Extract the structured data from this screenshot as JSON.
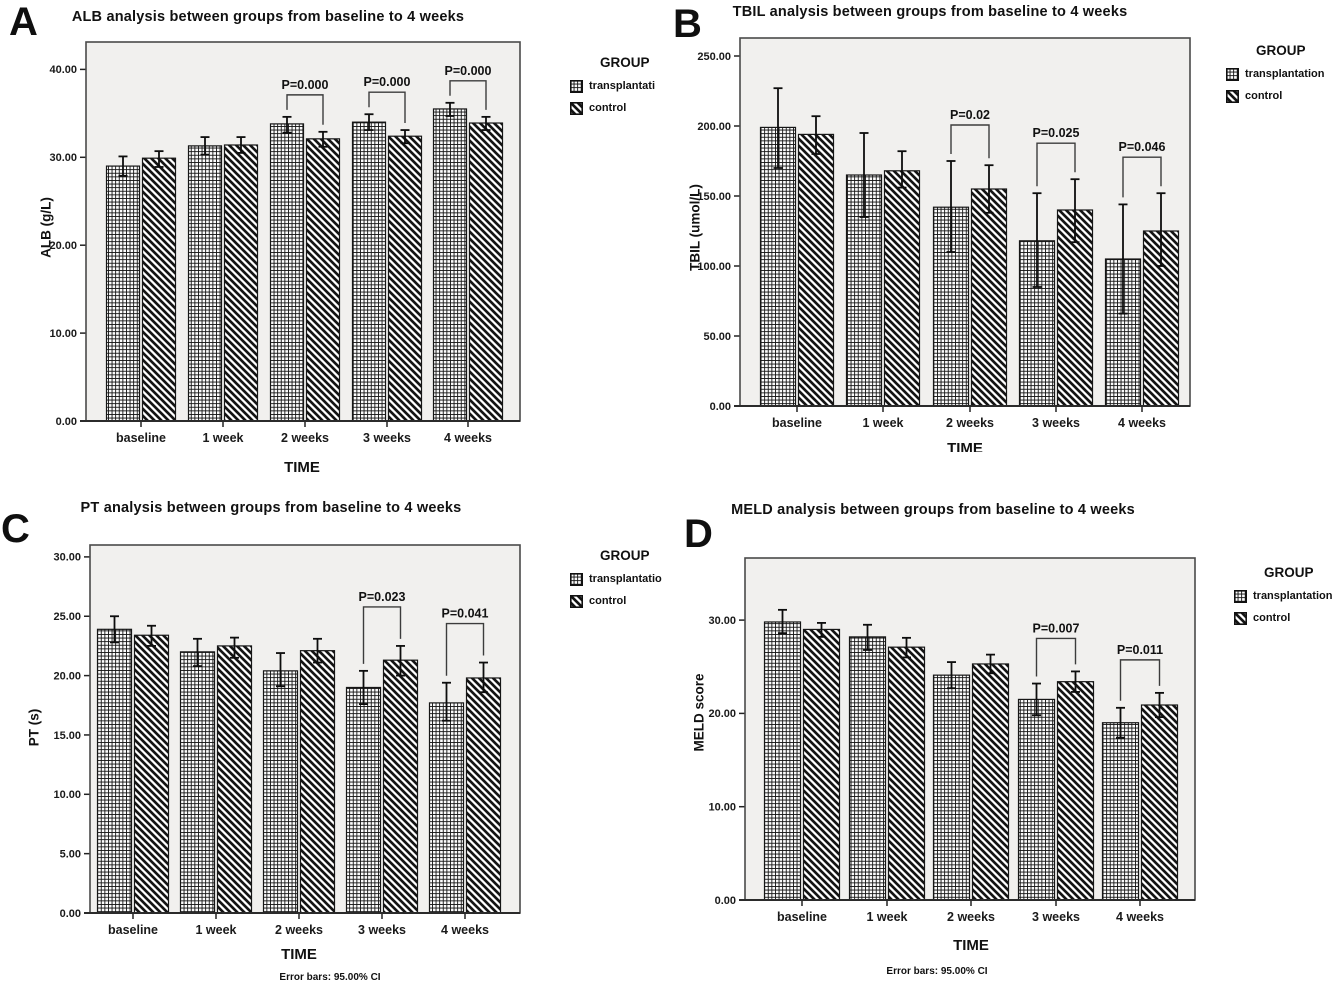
{
  "figure": {
    "style": "SPSS grouped bar charts, grayscale",
    "colors": {
      "plot_bg": "#f1f0ee",
      "pattern_ink": "#141414",
      "text": "#1a1a1a",
      "frame": "#4a4a4a"
    },
    "group_names": [
      "transplantation",
      "control"
    ]
  },
  "chart_data": [
    {
      "type": "bar",
      "panel_letter": "A",
      "title": "ALB analysis between groups from baseline to 4 weeks",
      "ylabel": "ALB (g/L)",
      "xlabel": "TIME",
      "legend": {
        "title": "GROUP",
        "items": [
          "transplantati",
          "control"
        ]
      },
      "legend_position": "right",
      "grid": false,
      "categories": [
        "baseline",
        "1 week",
        "2 weeks",
        "3 weeks",
        "4 weeks"
      ],
      "ylim": [
        0,
        43
      ],
      "yticks": [
        0,
        10,
        20,
        30,
        40
      ],
      "series": [
        {
          "name": "transplantation",
          "pattern": "grid",
          "values": [
            29.0,
            31.3,
            33.8,
            34.0,
            35.5
          ],
          "ci_low": [
            27.9,
            30.3,
            32.8,
            33.1,
            34.7
          ],
          "ci_high": [
            30.1,
            32.3,
            34.6,
            34.9,
            36.2
          ]
        },
        {
          "name": "control",
          "pattern": "diagonal",
          "values": [
            29.9,
            31.4,
            32.1,
            32.4,
            33.9
          ],
          "ci_low": [
            28.9,
            30.5,
            31.2,
            31.6,
            33.1
          ],
          "ci_high": [
            30.7,
            32.3,
            32.9,
            33.1,
            34.6
          ]
        }
      ],
      "p_values": [
        {
          "category": "2 weeks",
          "label": "P=0.000"
        },
        {
          "category": "3 weeks",
          "label": "P=0.000"
        },
        {
          "category": "4 weeks",
          "label": "P=0.000"
        }
      ]
    },
    {
      "type": "bar",
      "panel_letter": "B",
      "title": "TBIL analysis between groups from baseline to 4 weeks",
      "ylabel": "TBIL (umol/L)",
      "xlabel": "TIME",
      "legend": {
        "title": "GROUP",
        "items": [
          "transplantation",
          "control"
        ]
      },
      "legend_position": "right",
      "grid": false,
      "categories": [
        "baseline",
        "1 week",
        "2 weeks",
        "3 weeks",
        "4 weeks"
      ],
      "ylim": [
        0,
        263
      ],
      "yticks": [
        0,
        50,
        100,
        150,
        200,
        250
      ],
      "series": [
        {
          "name": "transplantation",
          "pattern": "grid",
          "values": [
            199,
            165,
            142,
            118,
            105
          ],
          "ci_low": [
            170,
            135,
            110,
            85,
            66
          ],
          "ci_high": [
            227,
            195,
            175,
            152,
            144
          ]
        },
        {
          "name": "control",
          "pattern": "diagonal",
          "values": [
            194,
            168,
            155,
            140,
            125
          ],
          "ci_low": [
            180,
            156,
            138,
            117,
            100
          ],
          "ci_high": [
            207,
            182,
            172,
            162,
            152
          ]
        }
      ],
      "p_values": [
        {
          "category": "2 weeks",
          "label": "P=0.02"
        },
        {
          "category": "3 weeks",
          "label": "P=0.025"
        },
        {
          "category": "4 weeks",
          "label": "P=0.046"
        }
      ]
    },
    {
      "type": "bar",
      "panel_letter": "C",
      "title": "PT analysis between groups from baseline to 4 weeks",
      "ylabel": "PT (s)",
      "xlabel": "TIME",
      "footnote": "Error bars: 95.00% CI",
      "legend": {
        "title": "GROUP",
        "items": [
          "transplantatio",
          "control"
        ]
      },
      "legend_position": "right",
      "grid": false,
      "categories": [
        "baseline",
        "1 week",
        "2 weeks",
        "3 weeks",
        "4 weeks"
      ],
      "ylim": [
        0,
        31
      ],
      "yticks": [
        0,
        5,
        10,
        15,
        20,
        25,
        30
      ],
      "series": [
        {
          "name": "transplantation",
          "pattern": "grid",
          "values": [
            23.9,
            22.0,
            20.4,
            19.0,
            17.7
          ],
          "ci_low": [
            22.8,
            20.8,
            19.1,
            17.6,
            16.2
          ],
          "ci_high": [
            25.0,
            23.1,
            21.9,
            20.4,
            19.4
          ]
        },
        {
          "name": "control",
          "pattern": "diagonal",
          "values": [
            23.4,
            22.5,
            22.1,
            21.3,
            19.8
          ],
          "ci_low": [
            22.5,
            21.5,
            21.1,
            20.0,
            18.6
          ],
          "ci_high": [
            24.2,
            23.2,
            23.1,
            22.5,
            21.1
          ]
        }
      ],
      "p_values": [
        {
          "category": "3 weeks",
          "label": "P=0.023"
        },
        {
          "category": "4 weeks",
          "label": "P=0.041"
        }
      ]
    },
    {
      "type": "bar",
      "panel_letter": "D",
      "title": "MELD analysis between groups from baseline to 4 weeks",
      "ylabel": "MELD score",
      "xlabel": "TIME",
      "footnote": "Error bars: 95.00% CI",
      "legend": {
        "title": "GROUP",
        "items": [
          "transplantation",
          "control"
        ]
      },
      "legend_position": "right",
      "grid": false,
      "categories": [
        "baseline",
        "1 week",
        "2 weeks",
        "3 weeks",
        "4 weeks"
      ],
      "ylim": [
        0,
        36.7
      ],
      "yticks": [
        0,
        10,
        20,
        30
      ],
      "series": [
        {
          "name": "transplantation",
          "pattern": "grid",
          "values": [
            29.8,
            28.2,
            24.1,
            21.5,
            19.0
          ],
          "ci_low": [
            28.6,
            26.8,
            22.7,
            19.8,
            17.4
          ],
          "ci_high": [
            31.1,
            29.5,
            25.5,
            23.2,
            20.6
          ]
        },
        {
          "name": "control",
          "pattern": "diagonal",
          "values": [
            29.0,
            27.1,
            25.3,
            23.4,
            20.9
          ],
          "ci_low": [
            28.2,
            26.0,
            24.3,
            22.3,
            19.6
          ],
          "ci_high": [
            29.7,
            28.1,
            26.3,
            24.5,
            22.2
          ]
        }
      ],
      "p_values": [
        {
          "category": "3 weeks",
          "label": "P=0.007"
        },
        {
          "category": "4 weeks",
          "label": "P=0.011"
        }
      ]
    }
  ]
}
